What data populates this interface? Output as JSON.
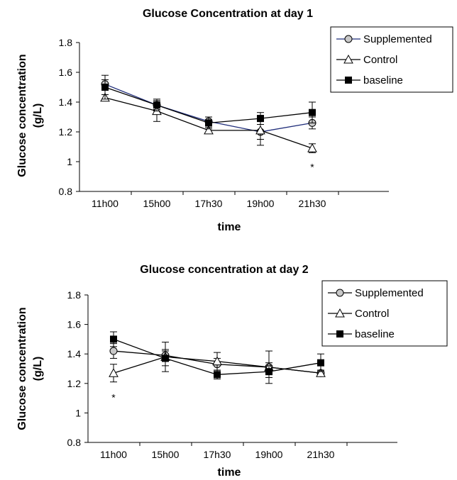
{
  "chart_data": [
    {
      "type": "line",
      "title": "Glucose Concentration at day 1",
      "xlabel": "time",
      "ylabel": "Glucose concentration (g/L)",
      "ylabel_lines": [
        "Glucose concentration",
        "(g/L)"
      ],
      "categories": [
        "11h00",
        "15h00",
        "17h30",
        "19h00",
        "21h30"
      ],
      "ylim": [
        0.8,
        1.8
      ],
      "yticks": [
        "0.8",
        "1",
        "1.2",
        "1.4",
        "1.6",
        "1.8"
      ],
      "legend_position": "top-right",
      "series": [
        {
          "name": "Supplemented",
          "marker": "circle",
          "color": "#1f2d7a",
          "values": [
            1.52,
            1.38,
            1.27,
            1.2,
            1.26
          ],
          "errors": [
            0.03,
            0.03,
            0.03,
            0.05,
            0.04
          ]
        },
        {
          "name": "Control",
          "marker": "triangle",
          "color": "#000000",
          "values": [
            1.43,
            1.34,
            1.21,
            1.21,
            1.09
          ],
          "errors": [
            0.02,
            0.07,
            0.02,
            0.1,
            0.03
          ]
        },
        {
          "name": "baseline",
          "marker": "square",
          "color": "#000000",
          "values": [
            1.5,
            1.38,
            1.26,
            1.29,
            1.33
          ],
          "errors": [
            0.08,
            0.04,
            0.04,
            0.04,
            0.07
          ]
        }
      ],
      "annotations": [
        {
          "text": "*",
          "category": "21h30",
          "y": 0.97
        }
      ]
    },
    {
      "type": "line",
      "title": "Glucose concentration at day 2",
      "xlabel": "time",
      "ylabel": "Glucose concentration (g/L)",
      "ylabel_lines": [
        "Glucose concentration",
        "(g/L)"
      ],
      "categories": [
        "11h00",
        "15h00",
        "17h30",
        "19h00",
        "21h30"
      ],
      "ylim": [
        0.8,
        1.8
      ],
      "yticks": [
        "0.8",
        "1",
        "1.2",
        "1.4",
        "1.6",
        "1.8"
      ],
      "legend_position": "top-right",
      "series": [
        {
          "name": "Supplemented",
          "marker": "circle",
          "color": "#000000",
          "values": [
            1.42,
            1.39,
            1.33,
            1.31,
            1.27
          ],
          "errors": [
            0.05,
            0.04,
            0.04,
            0.03,
            0.02
          ]
        },
        {
          "name": "Control",
          "marker": "triangle",
          "color": "#000000",
          "values": [
            1.27,
            1.38,
            1.35,
            1.31,
            1.27
          ],
          "errors": [
            0.06,
            0.1,
            0.06,
            0.11,
            0.02
          ]
        },
        {
          "name": "baseline",
          "marker": "square",
          "color": "#000000",
          "values": [
            1.5,
            1.37,
            1.26,
            1.28,
            1.34
          ],
          "errors": [
            0.05,
            0.05,
            0.03,
            0.04,
            0.06
          ]
        }
      ],
      "annotations": [
        {
          "text": "*",
          "category": "11h00",
          "y": 1.11
        }
      ]
    }
  ]
}
